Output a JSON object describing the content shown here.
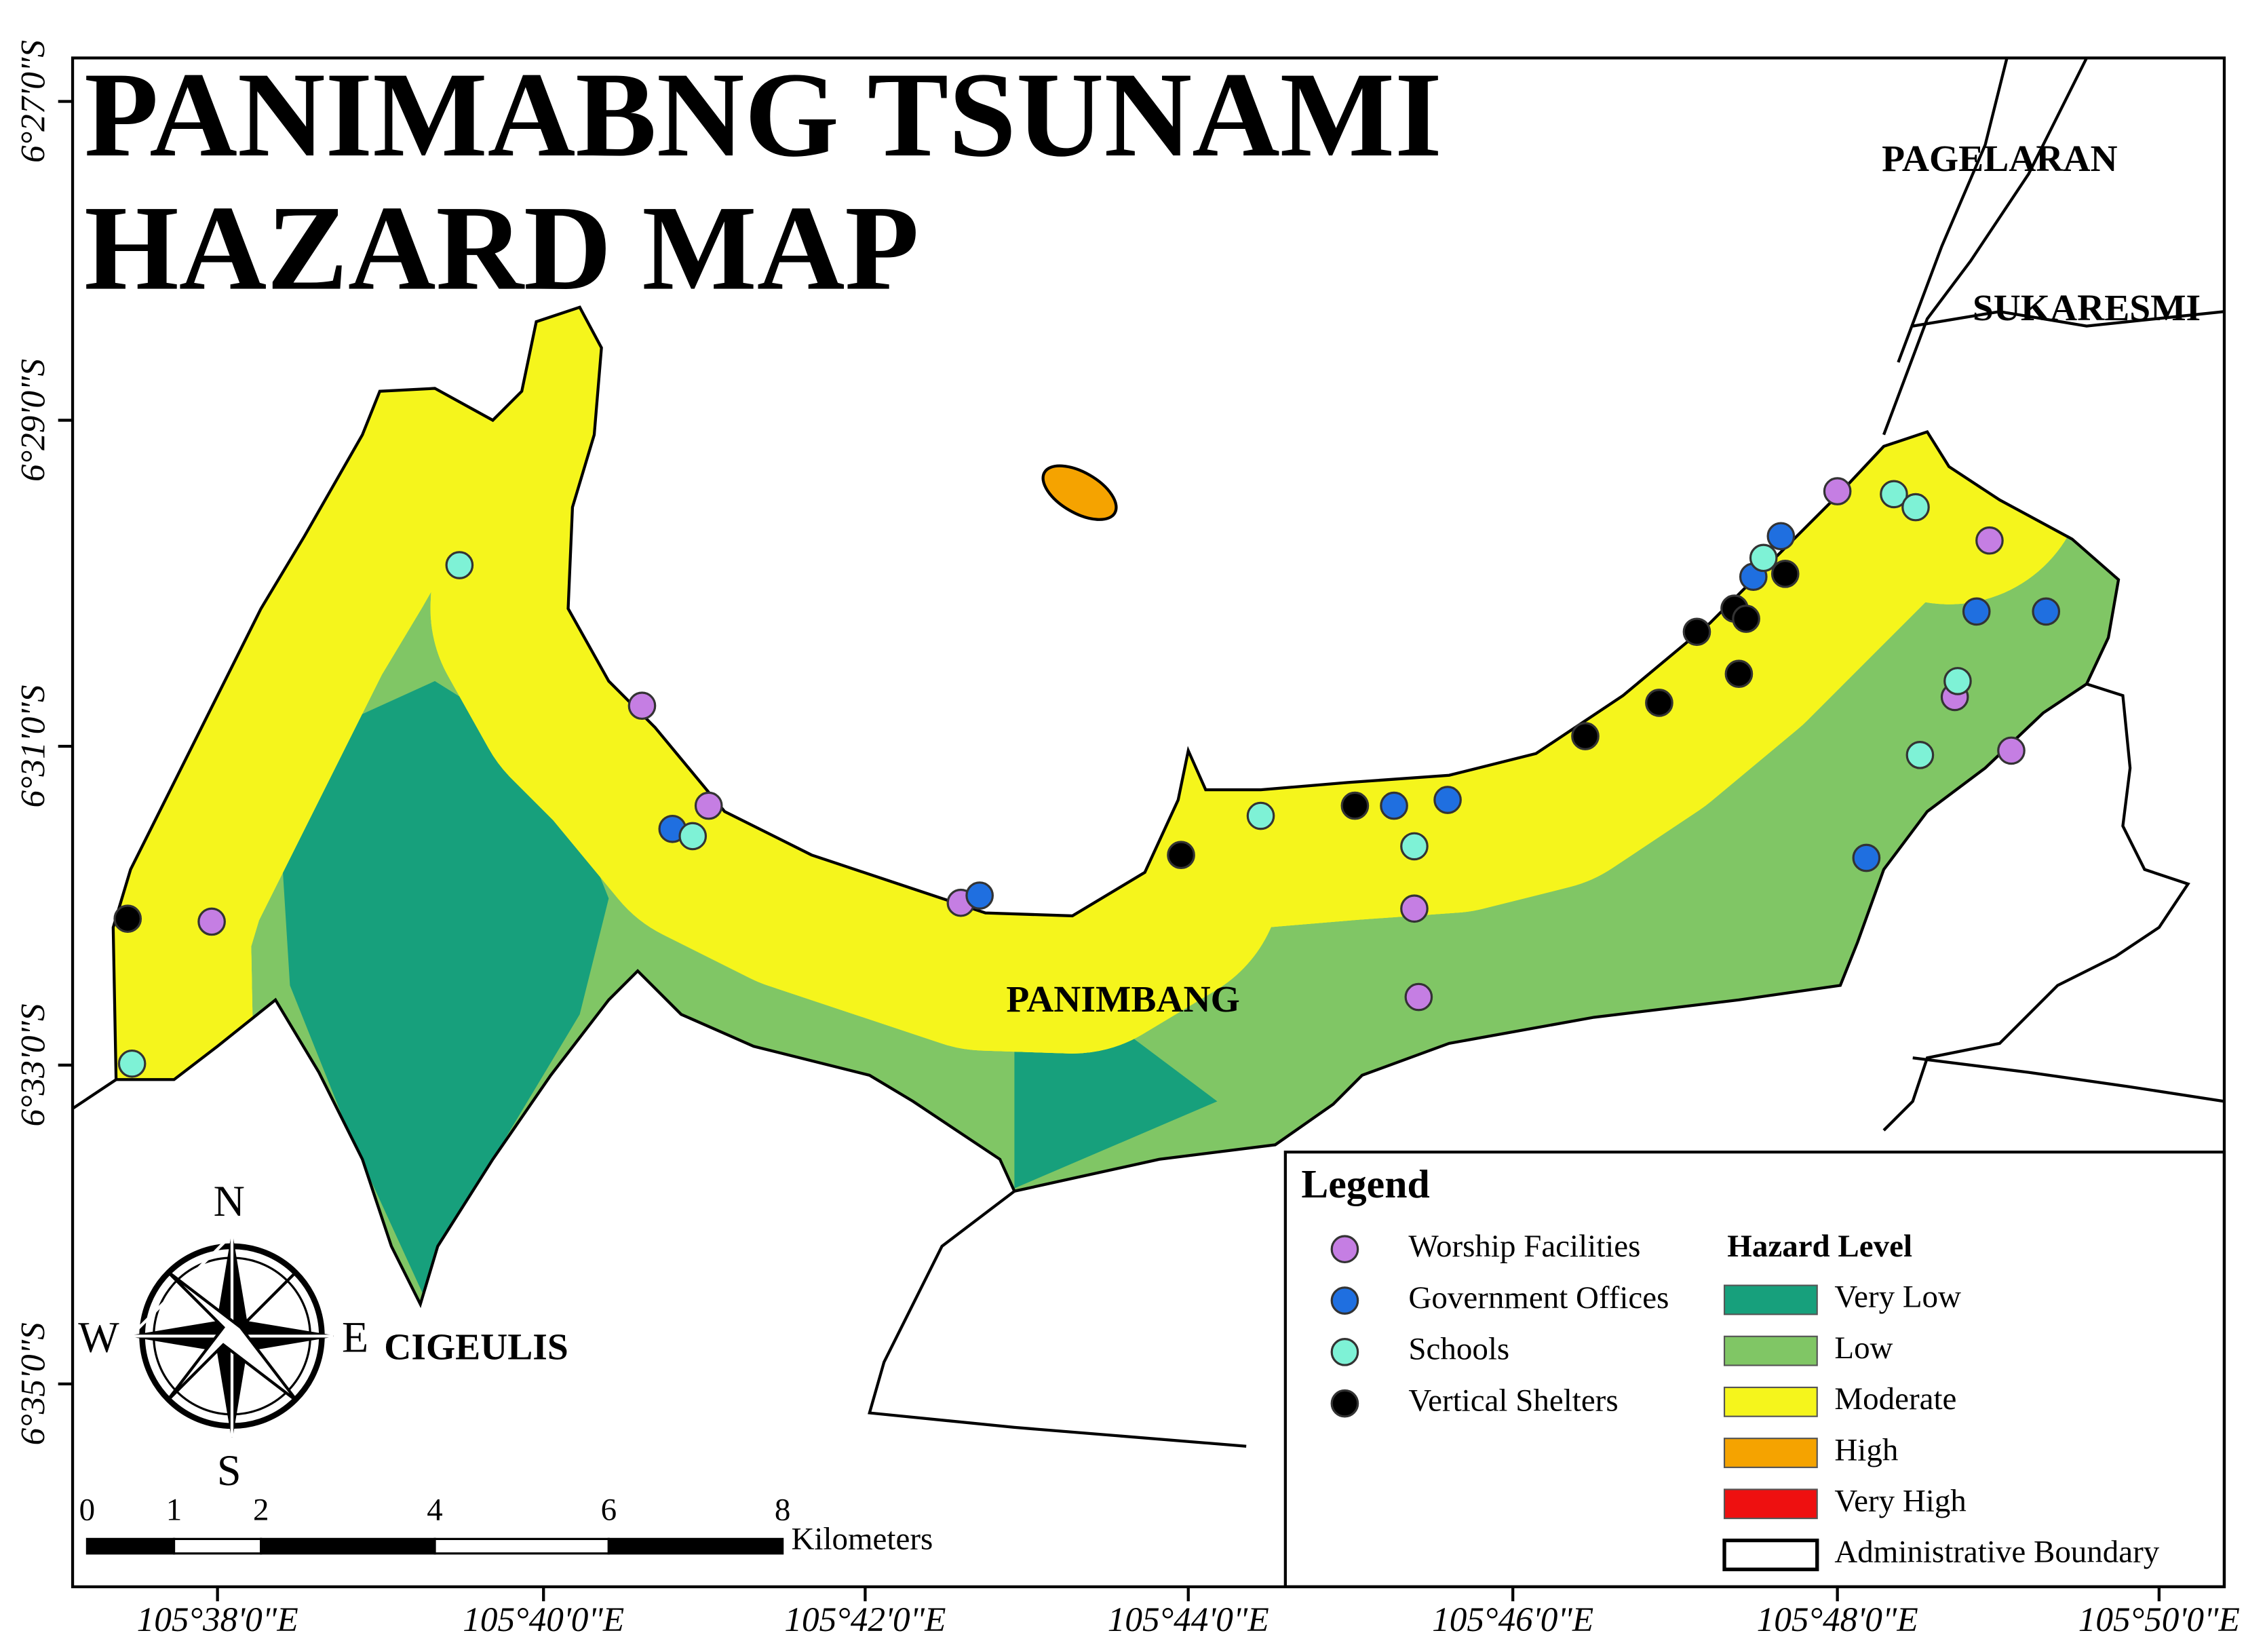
{
  "title": [
    "PANIMABNG TSUNAMI",
    "HAZARD MAP"
  ],
  "places": [
    "PAGELARAN",
    "SUKARESMI",
    "PANIMBANG",
    "CIGEULIS"
  ],
  "latitude_labels": [
    "6°27'0\"S",
    "6°29'0\"S",
    "6°31'0\"S",
    "6°33'0\"S",
    "6°35'0\"S"
  ],
  "longitude_labels": [
    "105°38'0\"E",
    "105°40'0\"E",
    "105°42'0\"E",
    "105°44'0\"E",
    "105°46'0\"E",
    "105°48'0\"E",
    "105°50'0\"E"
  ],
  "legend": {
    "title": "Legend",
    "facilities": [
      {
        "label": "Worship Facilities",
        "color": "#c57ee3"
      },
      {
        "label": "Government Offices",
        "color": "#1f6fe0"
      },
      {
        "label": "Schools",
        "color": "#7ef2d6"
      },
      {
        "label": "Vertical Shelters",
        "color": "#000000"
      }
    ],
    "hazard_title": "Hazard Level",
    "hazard_levels": [
      {
        "label": "Very Low",
        "color": "#17a07c"
      },
      {
        "label": "Low",
        "color": "#80c665"
      },
      {
        "label": "Moderate",
        "color": "#f5f51c"
      },
      {
        "label": "High",
        "color": "#f5a300"
      },
      {
        "label": "Very High",
        "color": "#ee1010"
      }
    ],
    "boundary": "Administrative Boundary"
  },
  "scale_bar": {
    "ticks": [
      0,
      1,
      2,
      4,
      6,
      8
    ],
    "unit": "Kilometers"
  },
  "compass": [
    "N",
    "E",
    "S",
    "W"
  ]
}
